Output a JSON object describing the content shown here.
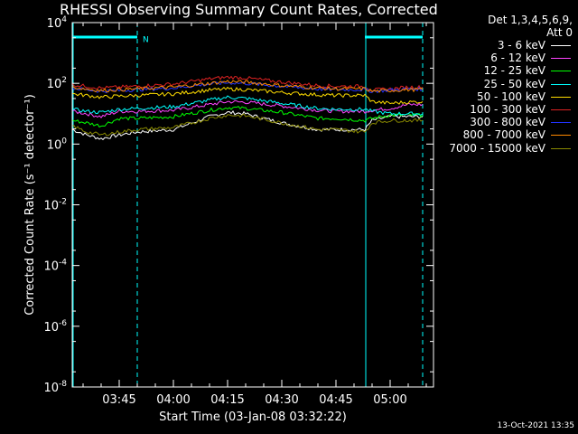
{
  "colors": {
    "background": "#000000",
    "axes": "#ffffff",
    "attenuator_marker": "#00ffff",
    "night_line": "#00ffff"
  },
  "timestamp": "13-Oct-2021 13:35",
  "chart_data": {
    "type": "line",
    "title": "RHESSI Observing Summary Count Rates, Corrected",
    "xlabel": "Start Time (03-Jan-08 03:32:22)",
    "ylabel": "Corrected Count Rate (s⁻¹ detector⁻¹)",
    "yscale": "log",
    "ylim": [
      1e-08,
      10000.0
    ],
    "xlim": [
      "03:32",
      "05:12"
    ],
    "grid": false,
    "legend_position": "top-right outside plot",
    "x_ticks": [
      "03:45",
      "04:00",
      "04:15",
      "04:30",
      "04:45",
      "05:00"
    ],
    "y_ticks": [
      {
        "value": 10000.0,
        "base": "10",
        "exp": "4"
      },
      {
        "value": 100.0,
        "base": "10",
        "exp": "2"
      },
      {
        "value": 1,
        "base": "10",
        "exp": "0"
      },
      {
        "value": 0.01,
        "base": "10",
        "exp": "-2"
      },
      {
        "value": 0.0001,
        "base": "10",
        "exp": "-4"
      },
      {
        "value": 1e-06,
        "base": "10",
        "exp": "-6"
      },
      {
        "value": 1e-08,
        "base": "10",
        "exp": "-8"
      }
    ],
    "legend_header": [
      "Det 1,3,4,5,6,9,",
      "Att 0"
    ],
    "annotations": [
      {
        "text": "N",
        "x": "03:50",
        "y": 3000
      }
    ],
    "night_intervals": [
      [
        "03:32",
        "03:50"
      ],
      [
        "04:53",
        "05:09"
      ]
    ],
    "dashed_lines_x": [
      "03:50",
      "05:09"
    ],
    "solid_lines_x": [
      "03:32",
      "04:53"
    ],
    "series": [
      {
        "name": "3 - 6 keV",
        "color": "#ffffff",
        "x": [
          "03:32",
          "03:36",
          "03:40",
          "03:45",
          "03:50",
          "04:00",
          "04:10",
          "04:15",
          "04:20",
          "04:30",
          "04:40",
          "04:45",
          "04:53",
          "04:55",
          "05:00",
          "05:05",
          "05:09"
        ],
        "y": [
          3,
          2,
          1.5,
          2,
          2.5,
          3,
          8,
          11,
          10,
          5,
          3,
          3,
          3,
          6,
          8,
          8,
          8
        ]
      },
      {
        "name": "6 - 12 keV",
        "color": "#ff44ff",
        "x": [
          "03:32",
          "03:36",
          "03:40",
          "03:45",
          "03:50",
          "04:00",
          "04:10",
          "04:15",
          "04:20",
          "04:30",
          "04:40",
          "04:45",
          "04:53",
          "04:55",
          "05:00",
          "05:05",
          "05:09"
        ],
        "y": [
          12,
          10,
          8,
          12,
          12,
          13,
          20,
          25,
          24,
          18,
          13,
          12,
          12,
          13,
          15,
          20,
          20
        ]
      },
      {
        "name": "12 - 25 keV",
        "color": "#00ff00",
        "x": [
          "03:32",
          "03:36",
          "03:40",
          "03:45",
          "03:50",
          "04:00",
          "04:10",
          "04:15",
          "04:20",
          "04:30",
          "04:40",
          "04:45",
          "04:53",
          "04:55",
          "05:00",
          "05:05",
          "05:09"
        ],
        "y": [
          6,
          5,
          4,
          7,
          7,
          8,
          13,
          16,
          15,
          11,
          7,
          7,
          6,
          7,
          9,
          9,
          9
        ]
      },
      {
        "name": "25 - 50 keV",
        "color": "#00ffff",
        "x": [
          "03:32",
          "03:36",
          "03:40",
          "03:45",
          "03:50",
          "04:00",
          "04:10",
          "04:15",
          "04:20",
          "04:30",
          "04:40",
          "04:45",
          "04:53",
          "04:55",
          "05:00",
          "05:05",
          "05:09"
        ],
        "y": [
          14,
          12,
          11,
          14,
          15,
          17,
          28,
          35,
          32,
          22,
          15,
          14,
          14,
          12,
          10,
          10,
          10
        ]
      },
      {
        "name": "50 - 100 keV",
        "color": "#ffdd00",
        "x": [
          "03:32",
          "03:36",
          "03:40",
          "03:45",
          "03:50",
          "04:00",
          "04:10",
          "04:15",
          "04:20",
          "04:30",
          "04:40",
          "04:45",
          "04:53",
          "04:55",
          "05:00",
          "05:05",
          "05:09"
        ],
        "y": [
          45,
          40,
          35,
          38,
          40,
          45,
          60,
          65,
          62,
          50,
          42,
          40,
          40,
          25,
          22,
          24,
          25
        ]
      },
      {
        "name": "100 - 300 keV",
        "color": "#dd2222",
        "x": [
          "03:32",
          "03:36",
          "03:40",
          "03:45",
          "03:50",
          "04:00",
          "04:10",
          "04:15",
          "04:20",
          "04:30",
          "04:40",
          "04:45",
          "04:53",
          "04:55",
          "05:00",
          "05:05",
          "05:09"
        ],
        "y": [
          90,
          80,
          70,
          75,
          80,
          95,
          140,
          160,
          150,
          110,
          85,
          80,
          80,
          60,
          65,
          75,
          75
        ]
      },
      {
        "name": "300 - 800 keV",
        "color": "#2233ff",
        "x": [
          "03:32",
          "03:36",
          "03:40",
          "03:45",
          "03:50",
          "04:00",
          "04:10",
          "04:15",
          "04:20",
          "04:30",
          "04:40",
          "04:45",
          "04:53",
          "04:55",
          "05:00",
          "05:05",
          "05:09"
        ],
        "y": [
          70,
          62,
          55,
          58,
          62,
          70,
          95,
          105,
          100,
          80,
          65,
          62,
          62,
          55,
          60,
          65,
          65
        ]
      },
      {
        "name": "800 - 7000 keV",
        "color": "#ff8800",
        "x": [
          "03:32",
          "03:36",
          "03:40",
          "03:45",
          "03:50",
          "04:00",
          "04:10",
          "04:15",
          "04:20",
          "04:30",
          "04:40",
          "04:45",
          "04:53",
          "04:55",
          "05:00",
          "05:05",
          "05:09"
        ],
        "y": [
          75,
          65,
          58,
          62,
          66,
          75,
          100,
          115,
          110,
          85,
          70,
          66,
          66,
          55,
          58,
          62,
          62
        ]
      },
      {
        "name": "7000 - 15000 keV",
        "color": "#888800",
        "x": [
          "03:32",
          "03:36",
          "03:40",
          "03:45",
          "03:50",
          "04:00",
          "04:10",
          "04:15",
          "04:20",
          "04:30",
          "04:40",
          "04:45",
          "04:53",
          "04:55",
          "05:00",
          "05:05",
          "05:09"
        ],
        "y": [
          4,
          2.5,
          2,
          2.5,
          3,
          3.5,
          7,
          9,
          8.5,
          5,
          3,
          3,
          2.5,
          5,
          6,
          6,
          6
        ]
      }
    ]
  }
}
